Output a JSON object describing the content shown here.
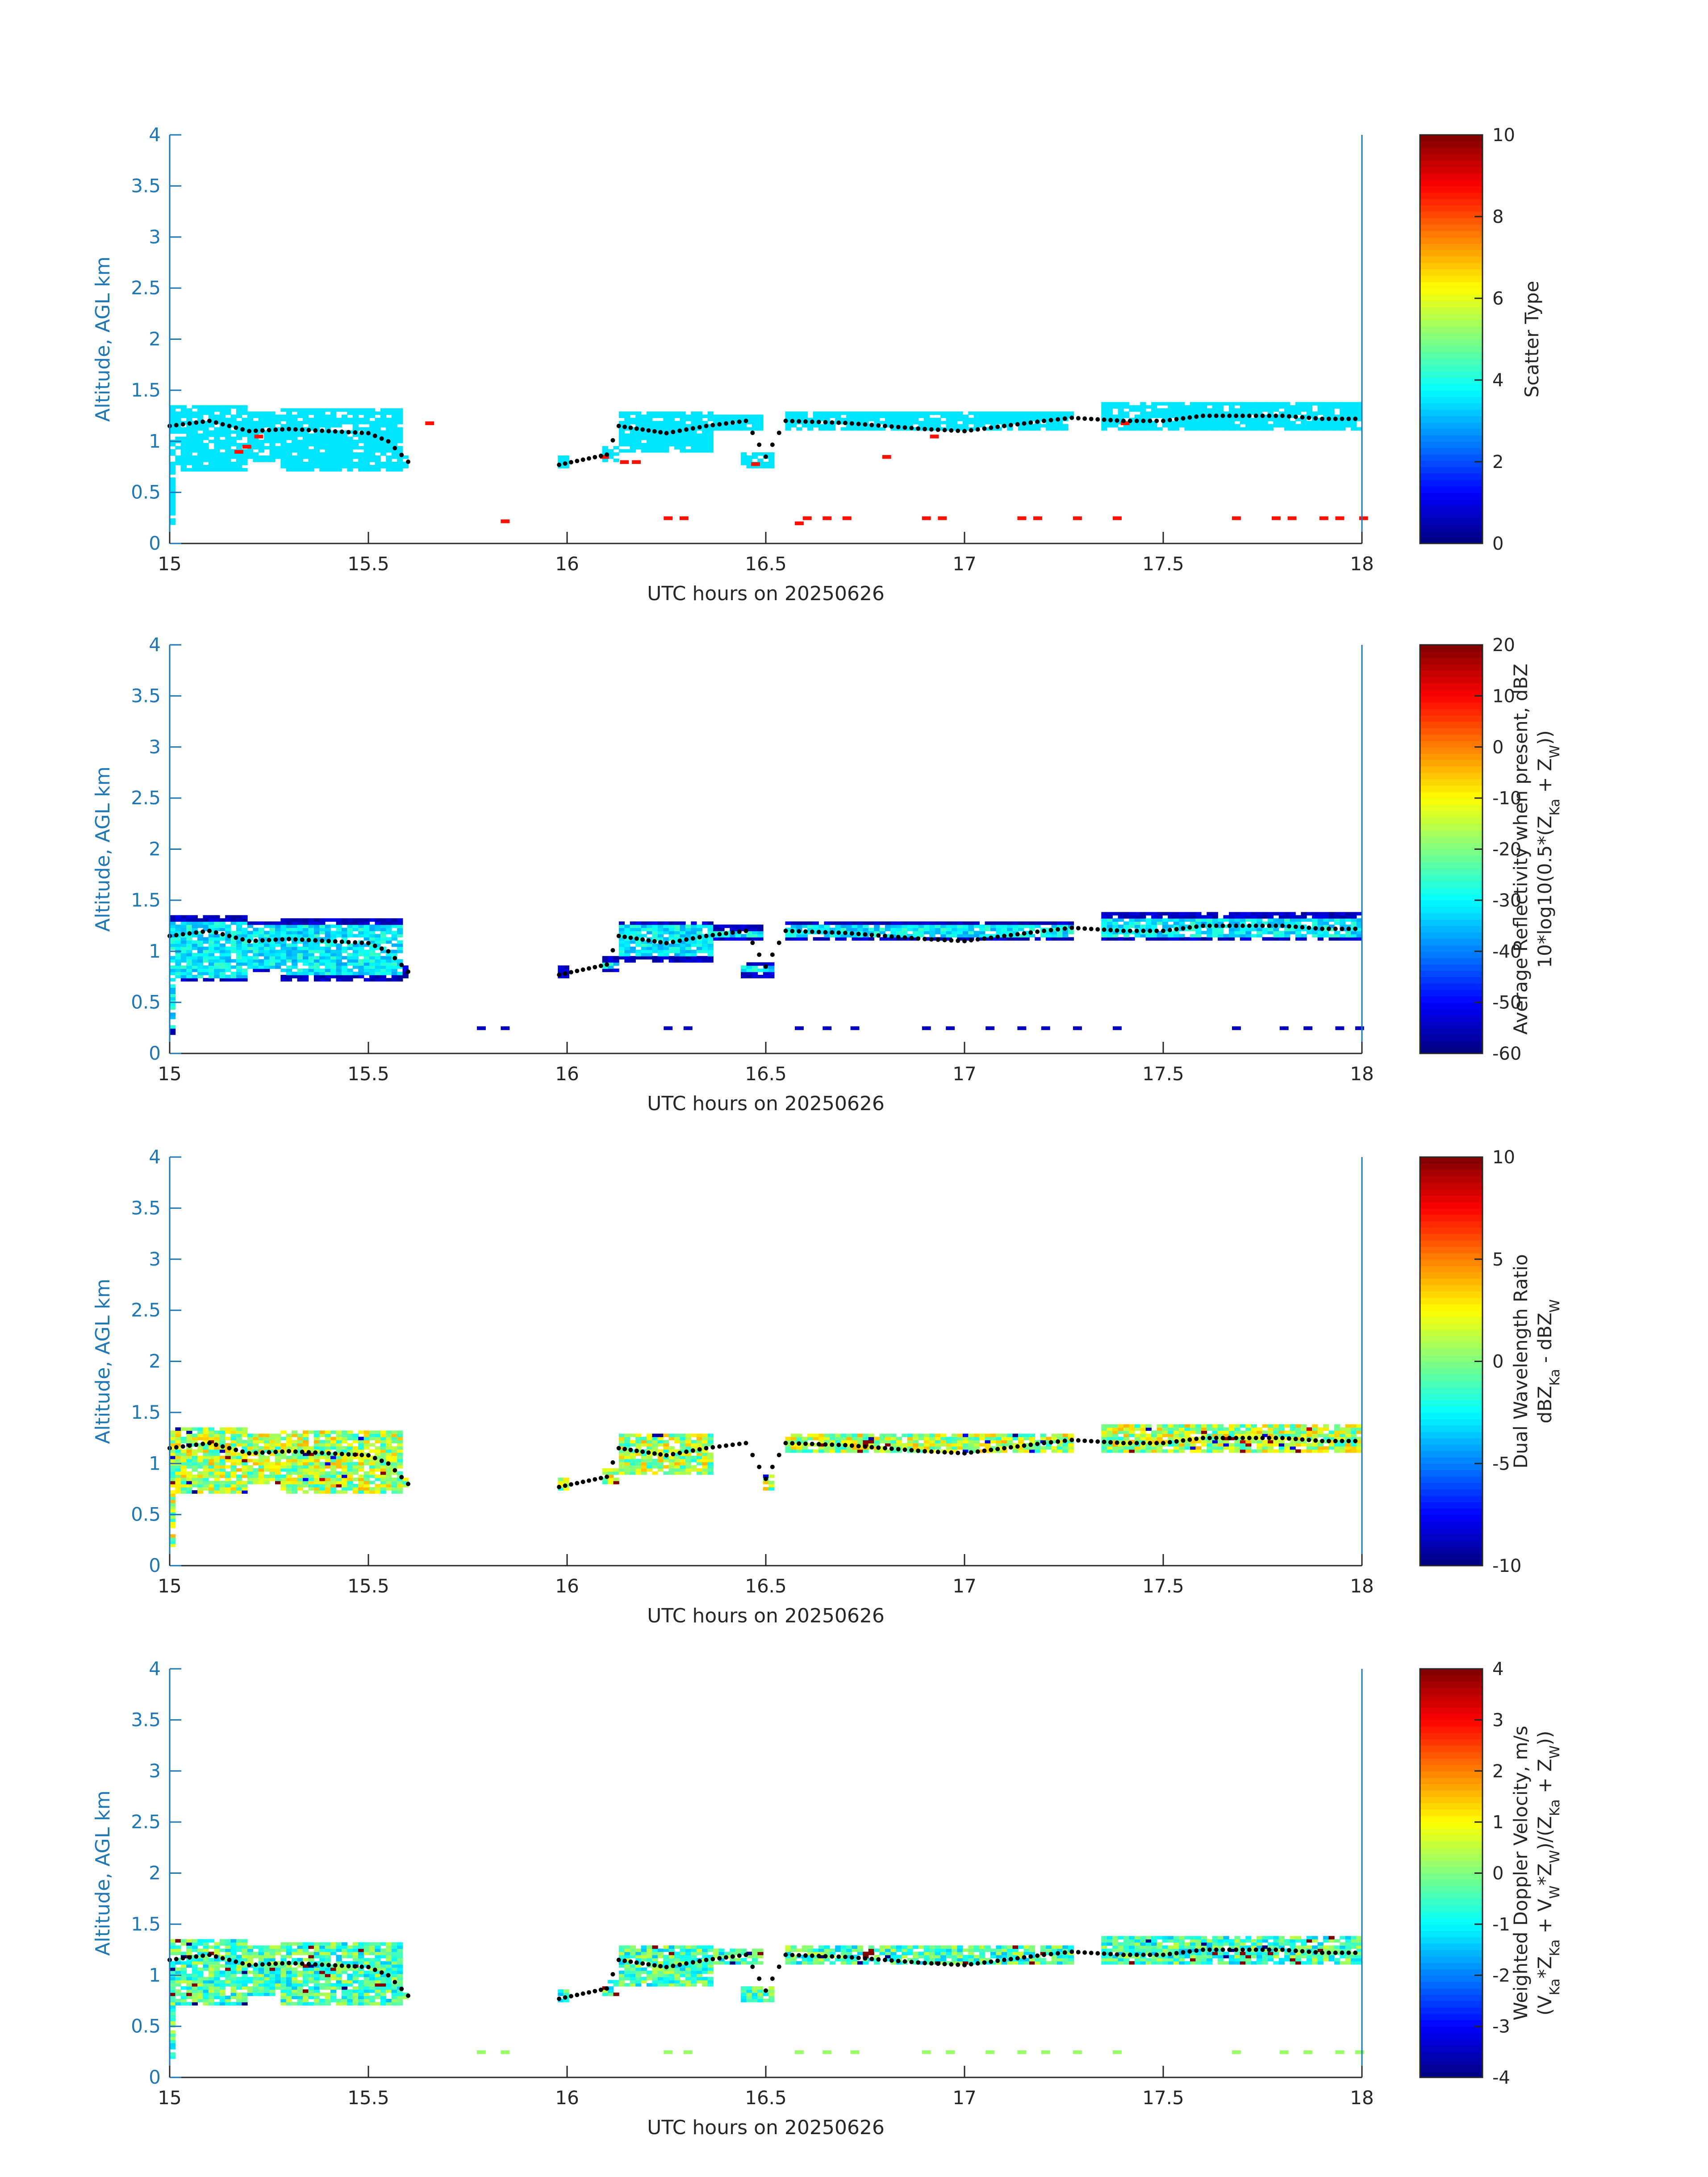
{
  "figure": {
    "colors": {
      "axis": "#1f77b4",
      "label_text": "#262626",
      "black": "#000000"
    }
  },
  "chart_data": [
    {
      "type": "heatmap",
      "id": "scatter-type",
      "xlabel": "UTC hours on 20250626",
      "ylabel": "Altitude, AGL km",
      "xlim": [
        15,
        18
      ],
      "ylim": [
        0,
        4
      ],
      "xticks": [
        "15",
        "15.5",
        "16",
        "16.5",
        "17",
        "17.5",
        "18"
      ],
      "yticks": [
        "0",
        "0.5",
        "1",
        "1.5",
        "2",
        "2.5",
        "3",
        "3.5",
        "4"
      ],
      "colorbar": {
        "label_lines": [
          "Scatter Type"
        ],
        "clim": [
          0,
          10
        ],
        "ticks": [
          "0",
          "2",
          "4",
          "6",
          "8",
          "10"
        ]
      },
      "colormap": "jet",
      "fill_mode": "const",
      "fill_value": 3.5,
      "outliers": {
        "value": 8.6,
        "points": [
          [
            15.17,
            0.9
          ],
          [
            15.19,
            0.95
          ],
          [
            15.22,
            1.05
          ],
          [
            15.65,
            1.18
          ],
          [
            15.84,
            0.22
          ],
          [
            16.09,
            0.85
          ],
          [
            16.14,
            0.8
          ],
          [
            16.17,
            0.8
          ],
          [
            16.47,
            0.78
          ],
          [
            16.58,
            0.2
          ],
          [
            16.8,
            0.85
          ],
          [
            16.92,
            1.05
          ],
          [
            17.4,
            1.18
          ]
        ]
      },
      "low_level_bins": {
        "value": 8.6,
        "points": [
          [
            16.25,
            0.25
          ],
          [
            16.29,
            0.25
          ],
          [
            16.6,
            0.25
          ],
          [
            16.65,
            0.25
          ],
          [
            16.7,
            0.25
          ],
          [
            16.9,
            0.25
          ],
          [
            16.94,
            0.25
          ],
          [
            17.14,
            0.25
          ],
          [
            17.18,
            0.25
          ],
          [
            17.28,
            0.25
          ],
          [
            17.38,
            0.25
          ],
          [
            17.68,
            0.25
          ],
          [
            17.78,
            0.25
          ],
          [
            17.82,
            0.25
          ],
          [
            17.9,
            0.25
          ],
          [
            17.94,
            0.25
          ],
          [
            18.0,
            0.25
          ]
        ]
      }
    },
    {
      "type": "heatmap",
      "id": "reflectivity",
      "xlabel": "UTC hours on 20250626",
      "ylabel": "Altitude, AGL km",
      "xlim": [
        15,
        18
      ],
      "ylim": [
        0,
        4
      ],
      "xticks": [
        "15",
        "15.5",
        "16",
        "16.5",
        "17",
        "17.5",
        "18"
      ],
      "yticks": [
        "0",
        "0.5",
        "1",
        "1.5",
        "2",
        "2.5",
        "3",
        "3.5",
        "4"
      ],
      "colorbar": {
        "label_lines": [
          "Average Reflectivity when present, dBZ",
          "10*log10(0.5*(Z_Ka + Z_W))"
        ],
        "clim": [
          -60,
          20
        ],
        "ticks": [
          "-60",
          "-50",
          "-40",
          "-30",
          "-20",
          "-10",
          "0",
          "10",
          "20"
        ]
      },
      "colormap": "jet",
      "fill_mode": "core",
      "core_value": -32,
      "edge_value": -55,
      "low_level_bins": {
        "value": -55,
        "points": [
          [
            15.78,
            0.25
          ],
          [
            15.84,
            0.25
          ],
          [
            16.25,
            0.25
          ],
          [
            16.3,
            0.25
          ],
          [
            16.58,
            0.25
          ],
          [
            16.65,
            0.25
          ],
          [
            16.72,
            0.25
          ],
          [
            16.9,
            0.25
          ],
          [
            16.96,
            0.25
          ],
          [
            17.06,
            0.25
          ],
          [
            17.14,
            0.25
          ],
          [
            17.2,
            0.25
          ],
          [
            17.28,
            0.25
          ],
          [
            17.38,
            0.25
          ],
          [
            17.68,
            0.25
          ],
          [
            17.8,
            0.25
          ],
          [
            17.86,
            0.25
          ],
          [
            17.94,
            0.25
          ],
          [
            17.99,
            0.25
          ]
        ]
      }
    },
    {
      "type": "heatmap",
      "id": "dual-wavelength-ratio",
      "xlabel": "UTC hours on 20250626",
      "ylabel": "Altitude, AGL km",
      "xlim": [
        15,
        18
      ],
      "ylim": [
        0,
        4
      ],
      "xticks": [
        "15",
        "15.5",
        "16",
        "16.5",
        "17",
        "17.5",
        "18"
      ],
      "yticks": [
        "0",
        "0.5",
        "1",
        "1.5",
        "2",
        "2.5",
        "3",
        "3.5",
        "4"
      ],
      "colorbar": {
        "label_lines": [
          "Dual Wavelength Ratio",
          "dBZ_Ka - dBZ_W"
        ],
        "clim": [
          -10,
          10
        ],
        "ticks": [
          "-10",
          "-5",
          "0",
          "5",
          "10"
        ]
      },
      "colormap": "jet",
      "fill_mode": "noisy",
      "center_value": 0.5,
      "spread": 3.5,
      "gap_ranges": [
        [
          16.37,
          16.5
        ],
        [
          17.28,
          17.35
        ]
      ]
    },
    {
      "type": "heatmap",
      "id": "doppler-velocity",
      "xlabel": "UTC hours on 20250626",
      "ylabel": "Altitude, AGL km",
      "xlim": [
        15,
        18
      ],
      "ylim": [
        0,
        4
      ],
      "xticks": [
        "15",
        "15.5",
        "16",
        "16.5",
        "17",
        "17.5",
        "18"
      ],
      "yticks": [
        "0",
        "0.5",
        "1",
        "1.5",
        "2",
        "2.5",
        "3",
        "3.5",
        "4"
      ],
      "colorbar": {
        "label_lines": [
          "Weighted Doppler Velocity, m/s",
          "(V_Ka*Z_Ka + V_W*Z_W)/(Z_Ka + Z_W))"
        ],
        "clim": [
          -4,
          4
        ],
        "ticks": [
          "-4",
          "-3",
          "-2",
          "-1",
          "0",
          "1",
          "2",
          "3",
          "4"
        ]
      },
      "colormap": "jet",
      "fill_mode": "noisy",
      "center_value": -0.6,
      "spread": 1.2,
      "low_level_bins": {
        "value": 0.2,
        "points": [
          [
            15.78,
            0.25
          ],
          [
            15.84,
            0.25
          ],
          [
            16.25,
            0.25
          ],
          [
            16.3,
            0.25
          ],
          [
            16.58,
            0.25
          ],
          [
            16.65,
            0.25
          ],
          [
            16.72,
            0.25
          ],
          [
            16.9,
            0.25
          ],
          [
            16.96,
            0.25
          ],
          [
            17.06,
            0.25
          ],
          [
            17.14,
            0.25
          ],
          [
            17.2,
            0.25
          ],
          [
            17.28,
            0.25
          ],
          [
            17.38,
            0.25
          ],
          [
            17.68,
            0.25
          ],
          [
            17.8,
            0.25
          ],
          [
            17.86,
            0.25
          ],
          [
            17.94,
            0.25
          ],
          [
            17.99,
            0.25
          ]
        ]
      }
    }
  ],
  "echo_regions": [
    [
      15.0,
      15.2,
      0.7,
      1.35
    ],
    [
      15.2,
      15.28,
      0.8,
      1.3
    ],
    [
      15.28,
      15.58,
      0.72,
      1.32
    ],
    [
      15.58,
      15.6,
      0.75,
      0.85
    ],
    [
      15.97,
      16.0,
      0.75,
      0.85
    ],
    [
      16.09,
      16.13,
      0.8,
      0.95
    ],
    [
      16.13,
      16.37,
      0.9,
      1.3
    ],
    [
      16.37,
      16.5,
      1.1,
      1.25
    ],
    [
      16.44,
      16.52,
      0.75,
      0.9
    ],
    [
      16.55,
      17.28,
      1.1,
      1.3
    ],
    [
      17.35,
      18.0,
      1.1,
      1.38
    ]
  ],
  "echo_column_low": [
    [
      15.0,
      15.02,
      0.2,
      0.7
    ]
  ],
  "cloud_base_km": [
    [
      15.0,
      1.15
    ],
    [
      15.1,
      1.2
    ],
    [
      15.2,
      1.1
    ],
    [
      15.3,
      1.12
    ],
    [
      15.4,
      1.1
    ],
    [
      15.5,
      1.08
    ],
    [
      15.55,
      1.0
    ],
    [
      15.6,
      0.8
    ],
    [
      15.98,
      0.77
    ],
    [
      16.1,
      0.87
    ],
    [
      16.13,
      1.15
    ],
    [
      16.25,
      1.08
    ],
    [
      16.35,
      1.15
    ],
    [
      16.45,
      1.2
    ],
    [
      16.5,
      0.85
    ],
    [
      16.55,
      1.2
    ],
    [
      16.7,
      1.18
    ],
    [
      16.8,
      1.15
    ],
    [
      16.9,
      1.12
    ],
    [
      17.0,
      1.1
    ],
    [
      17.1,
      1.15
    ],
    [
      17.2,
      1.2
    ],
    [
      17.27,
      1.23
    ],
    [
      17.4,
      1.2
    ],
    [
      17.5,
      1.2
    ],
    [
      17.6,
      1.25
    ],
    [
      17.7,
      1.25
    ],
    [
      17.8,
      1.25
    ],
    [
      17.9,
      1.22
    ],
    [
      18.0,
      1.22
    ]
  ]
}
